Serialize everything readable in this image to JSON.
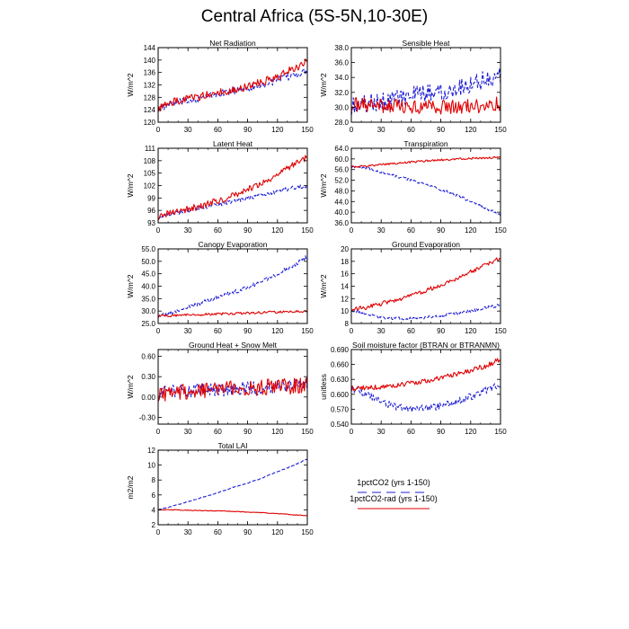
{
  "title": "Central Africa (5S-5N,10-30E)",
  "colors": {
    "series1": "#1f1fd6",
    "series2": "#e00000"
  },
  "legend": {
    "items": [
      {
        "label": "1pctCO2 (yrs 1-150)",
        "style": "dashed",
        "color": "#1f1fd6"
      },
      {
        "label": "1pctCO2-rad (yrs 1-150)",
        "style": "solid",
        "color": "#e00000"
      }
    ]
  },
  "chart_data": [
    {
      "type": "line",
      "title": "Net Radiation",
      "ylabel": "W/m^2",
      "xlim": [
        0,
        150
      ],
      "ylim": [
        120,
        144
      ],
      "yticks": [
        120,
        124,
        128,
        132,
        136,
        140,
        144
      ],
      "yticklabels": [
        "120",
        "124",
        "128",
        "132",
        "136",
        "140",
        "144"
      ],
      "xticks": [
        0,
        30,
        60,
        90,
        120,
        150
      ],
      "series": [
        {
          "key": "1pctCO2",
          "style": "dashed",
          "x": [
            0,
            15,
            30,
            45,
            60,
            75,
            90,
            105,
            120,
            135,
            150
          ],
          "y": [
            124.5,
            126,
            127,
            128,
            129,
            130,
            131,
            132,
            133.5,
            135,
            136.5
          ],
          "noise": 1.2
        },
        {
          "key": "1pctCO2-rad",
          "style": "solid",
          "x": [
            0,
            15,
            30,
            45,
            60,
            75,
            90,
            105,
            120,
            135,
            150
          ],
          "y": [
            124.5,
            126.5,
            127.5,
            128.5,
            129.5,
            130.5,
            131.5,
            133,
            134.5,
            137,
            139.5
          ],
          "noise": 1.3
        }
      ]
    },
    {
      "type": "line",
      "title": "Sensible Heat",
      "ylabel": "W/m^2",
      "xlim": [
        0,
        150
      ],
      "ylim": [
        28,
        38
      ],
      "yticks": [
        28,
        30,
        32,
        34,
        36,
        38
      ],
      "yticklabels": [
        "28.0",
        "30.0",
        "32.0",
        "34.0",
        "36.0",
        "38.0"
      ],
      "xticks": [
        0,
        30,
        60,
        90,
        120,
        150
      ],
      "series": [
        {
          "key": "1pctCO2",
          "style": "dashed",
          "x": [
            0,
            15,
            30,
            45,
            60,
            75,
            90,
            105,
            120,
            135,
            150
          ],
          "y": [
            30.2,
            30.5,
            30.8,
            31.2,
            31.5,
            31.8,
            32.2,
            32.6,
            33.2,
            33.8,
            34.2
          ],
          "noise": 1.3
        },
        {
          "key": "1pctCO2-rad",
          "style": "solid",
          "x": [
            0,
            15,
            30,
            45,
            60,
            75,
            90,
            105,
            120,
            135,
            150
          ],
          "y": [
            30.3,
            30.3,
            30.2,
            30.1,
            30.0,
            30.0,
            30.0,
            30.0,
            30.1,
            30.2,
            30.5
          ],
          "noise": 1.0
        }
      ]
    },
    {
      "type": "line",
      "title": "Latent Heat",
      "ylabel": "W/m^2",
      "xlim": [
        0,
        150
      ],
      "ylim": [
        93,
        111
      ],
      "yticks": [
        93,
        96,
        99,
        102,
        105,
        108,
        111
      ],
      "yticklabels": [
        "93",
        "96",
        "99",
        "102",
        "105",
        "108",
        "111"
      ],
      "xticks": [
        0,
        30,
        60,
        90,
        120,
        150
      ],
      "series": [
        {
          "key": "1pctCO2",
          "style": "dashed",
          "x": [
            0,
            15,
            30,
            45,
            60,
            75,
            90,
            105,
            120,
            135,
            150
          ],
          "y": [
            94.5,
            95.3,
            96,
            96.7,
            97.4,
            98.2,
            99,
            99.8,
            100.6,
            101.4,
            102
          ],
          "noise": 0.5
        },
        {
          "key": "1pctCO2-rad",
          "style": "solid",
          "x": [
            0,
            15,
            30,
            45,
            60,
            75,
            90,
            105,
            120,
            135,
            150
          ],
          "y": [
            94.5,
            95.5,
            96.3,
            97.2,
            98.3,
            99.5,
            101,
            102.5,
            104.5,
            106.8,
            109
          ],
          "noise": 0.8
        }
      ]
    },
    {
      "type": "line",
      "title": "Transpiration",
      "ylabel": "W/m^2",
      "xlim": [
        0,
        150
      ],
      "ylim": [
        36,
        64
      ],
      "yticks": [
        36,
        40,
        44,
        48,
        52,
        56,
        60,
        64
      ],
      "yticklabels": [
        "36.0",
        "40.0",
        "44.0",
        "48.0",
        "52.0",
        "56.0",
        "60.0",
        "64.0"
      ],
      "xticks": [
        0,
        30,
        60,
        90,
        120,
        150
      ],
      "series": [
        {
          "key": "1pctCO2",
          "style": "dashed",
          "x": [
            0,
            15,
            30,
            45,
            60,
            75,
            90,
            105,
            120,
            135,
            150
          ],
          "y": [
            57,
            56.5,
            55,
            53.5,
            52,
            50.3,
            48.5,
            46.5,
            44,
            41.5,
            39
          ],
          "noise": 0.5
        },
        {
          "key": "1pctCO2-rad",
          "style": "solid",
          "x": [
            0,
            15,
            30,
            45,
            60,
            75,
            90,
            105,
            120,
            135,
            150
          ],
          "y": [
            57,
            57.3,
            57.8,
            58.3,
            58.8,
            59.2,
            59.6,
            59.9,
            60.2,
            60.4,
            60.6
          ],
          "noise": 0.35
        }
      ]
    },
    {
      "type": "line",
      "title": "Canopy Evaporation",
      "ylabel": "W/m^2",
      "xlim": [
        0,
        150
      ],
      "ylim": [
        25,
        55
      ],
      "yticks": [
        25,
        30,
        35,
        40,
        45,
        50,
        55
      ],
      "yticklabels": [
        "25.0",
        "30.0",
        "35.0",
        "40.0",
        "45.0",
        "50.0",
        "55.0"
      ],
      "xticks": [
        0,
        30,
        60,
        90,
        120,
        150
      ],
      "series": [
        {
          "key": "1pctCO2",
          "style": "dashed",
          "x": [
            0,
            15,
            30,
            45,
            60,
            75,
            90,
            105,
            120,
            135,
            150
          ],
          "y": [
            28,
            29.5,
            31.5,
            33.5,
            35.5,
            37.5,
            39.5,
            42,
            45,
            48,
            52
          ],
          "noise": 0.8
        },
        {
          "key": "1pctCO2-rad",
          "style": "solid",
          "x": [
            0,
            15,
            30,
            45,
            60,
            75,
            90,
            105,
            120,
            135,
            150
          ],
          "y": [
            28,
            28.2,
            28.4,
            28.6,
            28.8,
            29,
            29.2,
            29.4,
            29.6,
            29.8,
            30
          ],
          "noise": 0.5
        }
      ]
    },
    {
      "type": "line",
      "title": "Ground Evaporation",
      "ylabel": "W/m^2",
      "xlim": [
        0,
        150
      ],
      "ylim": [
        8,
        20
      ],
      "yticks": [
        8,
        10,
        12,
        14,
        16,
        18,
        20
      ],
      "yticklabels": [
        "8",
        "10",
        "12",
        "14",
        "16",
        "18",
        "20"
      ],
      "xticks": [
        0,
        30,
        60,
        90,
        120,
        150
      ],
      "series": [
        {
          "key": "1pctCO2",
          "style": "dashed",
          "x": [
            0,
            15,
            30,
            45,
            60,
            75,
            90,
            105,
            120,
            135,
            150
          ],
          "y": [
            10.2,
            9.5,
            9,
            8.8,
            8.8,
            9,
            9.2,
            9.6,
            10,
            10.5,
            11
          ],
          "noise": 0.25
        },
        {
          "key": "1pctCO2-rad",
          "style": "solid",
          "x": [
            0,
            15,
            30,
            45,
            60,
            75,
            90,
            105,
            120,
            135,
            150
          ],
          "y": [
            10.2,
            10.6,
            11.2,
            11.8,
            12.5,
            13.3,
            14.2,
            15.2,
            16.3,
            17.4,
            18.5
          ],
          "noise": 0.35
        }
      ]
    },
    {
      "type": "line",
      "title": "Ground Heat + Snow Melt",
      "ylabel": "W/m^2",
      "xlim": [
        0,
        150
      ],
      "ylim": [
        -0.4,
        0.7
      ],
      "yticks": [
        -0.3,
        0,
        0.3,
        0.6
      ],
      "yticklabels": [
        "-0.30",
        "0.00",
        "0.30",
        "0.60"
      ],
      "xticks": [
        0,
        30,
        60,
        90,
        120,
        150
      ],
      "series": [
        {
          "key": "1pctCO2",
          "style": "dashed",
          "x": [
            0,
            15,
            30,
            45,
            60,
            75,
            90,
            105,
            120,
            135,
            150
          ],
          "y": [
            0.05,
            0.07,
            0.09,
            0.1,
            0.11,
            0.12,
            0.13,
            0.14,
            0.15,
            0.16,
            0.17
          ],
          "noise": 0.11
        },
        {
          "key": "1pctCO2-rad",
          "style": "solid",
          "x": [
            0,
            15,
            30,
            45,
            60,
            75,
            90,
            105,
            120,
            135,
            150
          ],
          "y": [
            0.05,
            0.07,
            0.09,
            0.1,
            0.11,
            0.12,
            0.13,
            0.14,
            0.15,
            0.16,
            0.17
          ],
          "noise": 0.12
        }
      ]
    },
    {
      "type": "line",
      "title": "Soil moisture factor (BTRAN or BTRANMN)",
      "ylabel": "unitless",
      "xlim": [
        0,
        150
      ],
      "ylim": [
        0.54,
        0.69
      ],
      "yticks": [
        0.54,
        0.57,
        0.6,
        0.63,
        0.66,
        0.69
      ],
      "yticklabels": [
        "0.540",
        "0.570",
        "0.600",
        "0.630",
        "0.660",
        "0.690"
      ],
      "xticks": [
        0,
        30,
        60,
        90,
        120,
        150
      ],
      "series": [
        {
          "key": "1pctCO2",
          "style": "dashed",
          "x": [
            0,
            15,
            30,
            45,
            60,
            75,
            90,
            105,
            120,
            135,
            150
          ],
          "y": [
            0.612,
            0.6,
            0.585,
            0.575,
            0.57,
            0.572,
            0.577,
            0.585,
            0.595,
            0.607,
            0.62
          ],
          "noise": 0.007
        },
        {
          "key": "1pctCO2-rad",
          "style": "solid",
          "x": [
            0,
            15,
            30,
            45,
            60,
            75,
            90,
            105,
            120,
            135,
            150
          ],
          "y": [
            0.612,
            0.613,
            0.615,
            0.618,
            0.622,
            0.627,
            0.633,
            0.64,
            0.648,
            0.657,
            0.67
          ],
          "noise": 0.005
        }
      ]
    },
    {
      "type": "line",
      "title": "Total LAI",
      "ylabel": "m2/m2",
      "xlim": [
        0,
        150
      ],
      "ylim": [
        2,
        12
      ],
      "yticks": [
        2,
        4,
        6,
        8,
        10,
        12
      ],
      "yticklabels": [
        "2",
        "4",
        "6",
        "8",
        "10",
        "12"
      ],
      "xticks": [
        0,
        30,
        60,
        90,
        120,
        150
      ],
      "series": [
        {
          "key": "1pctCO2",
          "style": "dashed",
          "x": [
            0,
            15,
            30,
            45,
            60,
            75,
            90,
            105,
            120,
            135,
            150
          ],
          "y": [
            4,
            4.5,
            5.1,
            5.7,
            6.3,
            7,
            7.6,
            8.3,
            9.1,
            9.9,
            10.8
          ],
          "noise": 0.05
        },
        {
          "key": "1pctCO2-rad",
          "style": "solid",
          "x": [
            0,
            15,
            30,
            45,
            60,
            75,
            90,
            105,
            120,
            135,
            150
          ],
          "y": [
            4,
            4,
            3.95,
            3.9,
            3.85,
            3.8,
            3.7,
            3.6,
            3.5,
            3.35,
            3.2
          ],
          "noise": 0.05
        }
      ]
    }
  ]
}
